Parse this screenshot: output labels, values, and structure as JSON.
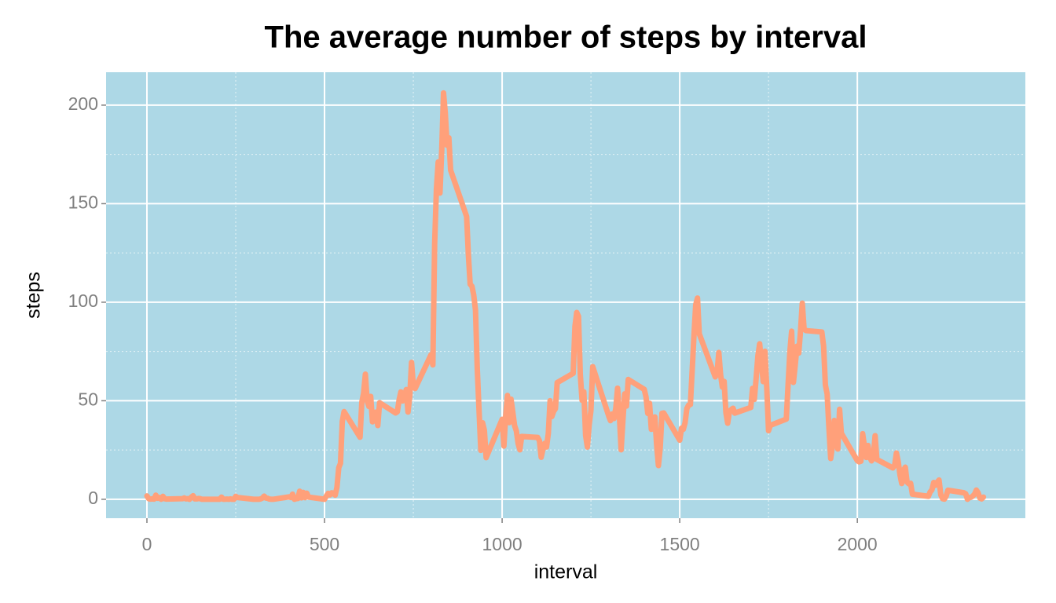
{
  "chart_data": {
    "type": "line",
    "title": "The average number of steps by interval",
    "x_label": "interval",
    "y_label": "steps",
    "x": [
      0,
      5,
      10,
      15,
      20,
      25,
      30,
      35,
      40,
      45,
      50,
      55,
      100,
      105,
      110,
      115,
      120,
      125,
      130,
      135,
      140,
      145,
      150,
      155,
      200,
      205,
      210,
      215,
      220,
      225,
      230,
      235,
      240,
      245,
      250,
      255,
      300,
      305,
      310,
      315,
      320,
      325,
      330,
      335,
      340,
      345,
      350,
      355,
      400,
      405,
      410,
      415,
      420,
      425,
      430,
      435,
      440,
      445,
      450,
      455,
      500,
      505,
      510,
      515,
      520,
      525,
      530,
      535,
      540,
      545,
      550,
      555,
      600,
      605,
      610,
      615,
      620,
      625,
      630,
      635,
      640,
      645,
      650,
      655,
      700,
      705,
      710,
      715,
      720,
      725,
      730,
      735,
      740,
      745,
      750,
      755,
      800,
      805,
      810,
      815,
      820,
      825,
      830,
      835,
      840,
      845,
      850,
      855,
      900,
      905,
      910,
      915,
      920,
      925,
      930,
      935,
      940,
      945,
      950,
      955,
      1000,
      1005,
      1010,
      1015,
      1020,
      1025,
      1030,
      1035,
      1040,
      1045,
      1050,
      1055,
      1100,
      1105,
      1110,
      1115,
      1120,
      1125,
      1130,
      1135,
      1140,
      1145,
      1150,
      1155,
      1200,
      1205,
      1210,
      1215,
      1220,
      1225,
      1230,
      1235,
      1240,
      1245,
      1250,
      1255,
      1300,
      1305,
      1310,
      1315,
      1320,
      1325,
      1330,
      1335,
      1340,
      1345,
      1350,
      1355,
      1400,
      1405,
      1410,
      1415,
      1420,
      1425,
      1430,
      1435,
      1440,
      1445,
      1450,
      1455,
      1500,
      1505,
      1510,
      1515,
      1520,
      1525,
      1530,
      1535,
      1540,
      1545,
      1550,
      1555,
      1600,
      1605,
      1610,
      1615,
      1620,
      1625,
      1630,
      1635,
      1640,
      1645,
      1650,
      1655,
      1700,
      1705,
      1710,
      1715,
      1720,
      1725,
      1730,
      1735,
      1740,
      1745,
      1750,
      1755,
      1800,
      1805,
      1810,
      1815,
      1820,
      1825,
      1830,
      1835,
      1840,
      1845,
      1850,
      1855,
      1900,
      1905,
      1910,
      1915,
      1920,
      1925,
      1930,
      1935,
      1940,
      1945,
      1950,
      1955,
      2000,
      2005,
      2010,
      2015,
      2020,
      2025,
      2030,
      2035,
      2040,
      2045,
      2050,
      2055,
      2100,
      2105,
      2110,
      2115,
      2120,
      2125,
      2130,
      2135,
      2140,
      2145,
      2150,
      2155,
      2200,
      2205,
      2210,
      2215,
      2220,
      2225,
      2230,
      2235,
      2240,
      2245,
      2250,
      2255,
      2300,
      2305,
      2310,
      2315,
      2320,
      2325,
      2330,
      2335,
      2340,
      2345,
      2350,
      2355
    ],
    "series": [
      {
        "name": "steps",
        "color": "#ffa07a",
        "values": [
          1.7,
          0.3,
          0.1,
          0.2,
          0.1,
          2.1,
          0.5,
          0.9,
          0,
          1.5,
          0.3,
          0.1,
          0.3,
          0.7,
          0.2,
          0.3,
          0,
          1.1,
          1.8,
          0.2,
          0.2,
          0.4,
          0.3,
          0,
          0,
          0,
          1.1,
          0,
          0,
          0.1,
          0,
          0.2,
          0,
          0,
          1.5,
          0.9,
          0,
          0,
          0,
          0,
          0.2,
          0.6,
          1.6,
          0.6,
          0.5,
          0.1,
          0,
          0,
          1.2,
          0.9,
          2.6,
          0,
          0.3,
          0.4,
          4.1,
          0.7,
          3.5,
          0.8,
          3.1,
          1.1,
          0,
          1.6,
          3,
          2.2,
          3.3,
          3,
          2.1,
          6.1,
          16,
          18.3,
          39.5,
          44.5,
          31.5,
          49.3,
          53.8,
          63.5,
          50,
          47.1,
          52.2,
          39.3,
          44,
          44.2,
          37.4,
          49,
          43.8,
          44.4,
          50.5,
          54.5,
          49.9,
          51,
          55.7,
          44.3,
          52.3,
          69.5,
          57.8,
          56.2,
          73.4,
          68.2,
          129.4,
          157.5,
          171.2,
          155.4,
          177.3,
          206.2,
          195.9,
          179.6,
          183.4,
          167,
          143.5,
          124,
          109.1,
          108.1,
          103.7,
          96,
          66.2,
          45.2,
          24.8,
          38.8,
          35,
          21.1,
          40.6,
          27,
          42.4,
          52.7,
          38.9,
          50.8,
          44.3,
          37.4,
          34.7,
          28.3,
          25.1,
          31.9,
          31.4,
          29.7,
          21.3,
          25.5,
          28.4,
          26.5,
          33.4,
          50,
          42,
          44.6,
          46,
          59.2,
          63.9,
          87.7,
          94.8,
          92.8,
          63.4,
          50.2,
          54.5,
          32.4,
          26.5,
          37.7,
          45.1,
          67.3,
          42.3,
          39.9,
          43.3,
          41,
          46.2,
          56.4,
          42.8,
          25.1,
          40,
          53.5,
          47.3,
          60.8,
          55.8,
          52,
          43.6,
          48.7,
          35.5,
          37.5,
          41.8,
          27.5,
          17.1,
          26.1,
          43.6,
          43.8,
          30,
          36.1,
          35.5,
          38.8,
          46,
          47.8,
          48.1,
          65.3,
          82.9,
          98.7,
          102.1,
          84,
          62.1,
          64.1,
          74.5,
          63.2,
          56.9,
          59.8,
          43.9,
          38.6,
          44.7,
          45.5,
          46.2,
          43.7,
          46.6,
          56.3,
          50.7,
          61.2,
          72.7,
          78.9,
          68.9,
          59.7,
          75.1,
          56.5,
          34.8,
          37.5,
          40.7,
          58,
          74.7,
          85.3,
          59.3,
          67.8,
          77.7,
          74.2,
          85.3,
          99.5,
          86.6,
          85.6,
          84.9,
          77.8,
          58,
          53.4,
          36.3,
          20.7,
          27.4,
          40,
          30.2,
          25.5,
          45.7,
          33.5,
          19.6,
          19,
          19.3,
          33.3,
          26.8,
          21.2,
          27.3,
          21.3,
          19.5,
          21.3,
          32.3,
          20.2,
          15.9,
          17.2,
          23.5,
          19.2,
          12.5,
          8,
          14.7,
          16.3,
          8.7,
          7.8,
          8.1,
          2.6,
          1.5,
          3.7,
          4.8,
          8.5,
          7.1,
          8.7,
          9.8,
          2.2,
          0.3,
          0.1,
          1.6,
          4.6,
          3.3,
          2.8,
          0,
          0.8,
          1,
          1.6,
          2.6,
          4.7,
          3.3,
          0.6,
          0.2,
          1.1
        ]
      }
    ],
    "xlim": [
      -115,
      2473
    ],
    "ylim": [
      -9.6,
      216.7
    ],
    "xticks": [
      0,
      500,
      1000,
      1500,
      2000
    ],
    "yticks": [
      0,
      50,
      100,
      150,
      200
    ],
    "grid": true,
    "background": "#add8e6"
  }
}
